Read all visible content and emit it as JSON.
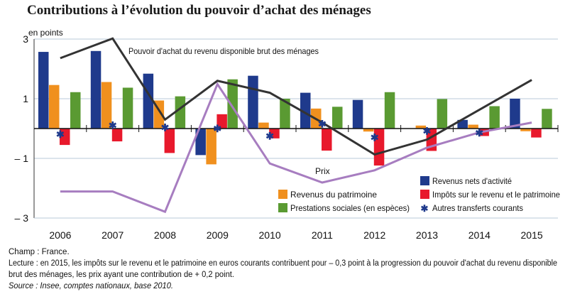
{
  "title": "Contributions à l’évolution du pouvoir d’achat des ménages",
  "chart_data": {
    "type": "bar",
    "title": "Contributions à l’évolution du pouvoir d’achat des ménages",
    "ylabel": "en points",
    "ylim": [
      -3,
      3
    ],
    "yticks": [
      3,
      1,
      -1,
      -3
    ],
    "ytick_labels": [
      "3",
      "1",
      "– 1",
      "– 3"
    ],
    "grid": true,
    "categories": [
      "2006",
      "2007",
      "2008",
      "2009",
      "2010",
      "2011",
      "2012",
      "2013",
      "2014",
      "2015"
    ],
    "series": [
      {
        "name": "Revenus nets d'activité",
        "kind": "bar",
        "color": "#1f3a8c",
        "values": [
          2.57,
          2.6,
          1.84,
          -0.89,
          1.77,
          1.2,
          0.96,
          0,
          0.29,
          1.0
        ]
      },
      {
        "name": "Revenus du patrimoine",
        "kind": "bar",
        "color": "#f0901e",
        "values": [
          1.46,
          1.56,
          0.94,
          -1.2,
          0.2,
          0.67,
          -0.1,
          0.1,
          0.13,
          -0.09
        ]
      },
      {
        "name": "Impôts sur le revenu et le patrimoine",
        "kind": "bar",
        "color": "#e8192c",
        "values": [
          -0.55,
          -0.43,
          -0.82,
          0.48,
          -0.33,
          -0.74,
          -1.24,
          -0.75,
          -0.25,
          -0.3
        ]
      },
      {
        "name": "Prestations sociales (en espèces)",
        "kind": "bar",
        "color": "#5a9a32",
        "values": [
          1.22,
          1.37,
          1.08,
          1.65,
          1.0,
          0.73,
          1.22,
          0.99,
          0.75,
          0.66
        ]
      },
      {
        "name": "Autres transferts courants",
        "kind": "marker",
        "color": "#1f3a8c",
        "values": [
          -0.19,
          0.11,
          0.03,
          0,
          -0.25,
          0.15,
          -0.3,
          -0.08,
          -0.14,
          null
        ]
      },
      {
        "name": "Pouvoir d'achat du revenu disponible brut des ménages",
        "kind": "line",
        "color": "#333333",
        "values": [
          2.36,
          3.02,
          0.3,
          1.6,
          1.2,
          0.2,
          -0.87,
          -0.37,
          0.63,
          1.63
        ]
      },
      {
        "name": "Prix",
        "kind": "line",
        "color": "#a77dc0",
        "values": [
          -2.11,
          -2.11,
          -2.79,
          1.49,
          -1.17,
          -1.81,
          -1.4,
          -0.64,
          -0.13,
          0.2
        ]
      }
    ],
    "legend": {
      "placement": "bottom-right",
      "entries": [
        "Revenus nets d'activité",
        "Revenus du patrimoine",
        "Impôts sur le revenu et le patrimoine",
        "Prestations sociales (en espèces)",
        "Autres transferts courants"
      ]
    },
    "annotations": {
      "pouvoir": "Pouvoir d'achat du revenu disponible brut des ménages",
      "prix": "Prix"
    }
  },
  "notes": {
    "champ": "Champ : France.",
    "lecture1": "Lecture : en 2015, les impôts sur le revenu et le patrimoine en euros courants contribuent pour – 0,3 point à la progression du pouvoir d'achat du revenu disponible",
    "lecture2": "brut des ménages, les prix ayant une contribution de + 0,2 point.",
    "source": "Source : Insee, comptes nationaux, base 2010."
  }
}
